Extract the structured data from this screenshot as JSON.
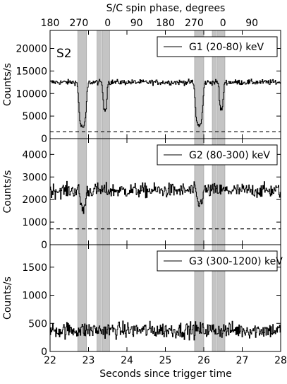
{
  "chart_data": {
    "type": "line",
    "top_axis": {
      "label": "S/C spin phase, degrees",
      "ticks": [
        {
          "x": 22.0,
          "label": "180"
        },
        {
          "x": 22.75,
          "label": "270"
        },
        {
          "x": 23.5,
          "label": "0"
        },
        {
          "x": 24.25,
          "label": "90"
        },
        {
          "x": 25.0,
          "label": "180"
        },
        {
          "x": 25.75,
          "label": "270"
        },
        {
          "x": 26.5,
          "label": "0"
        },
        {
          "x": 27.25,
          "label": "90"
        }
      ]
    },
    "xlabel": "Seconds since trigger time",
    "xlim": [
      22,
      28
    ],
    "xticks": [
      22,
      23,
      24,
      25,
      26,
      27,
      28
    ],
    "xtick_labels": [
      "22",
      "23",
      "24",
      "25",
      "26",
      "27",
      "28"
    ],
    "shaded_intervals": [
      [
        22.72,
        22.95
      ],
      [
        23.22,
        23.33
      ],
      [
        23.36,
        23.55
      ],
      [
        25.76,
        26.0
      ],
      [
        26.22,
        26.33
      ],
      [
        26.36,
        26.55
      ]
    ],
    "panels": [
      {
        "label": "S2",
        "legend": "G1 (20-80) keV",
        "ylabel": "Counts/s",
        "ylim": [
          0,
          24000
        ],
        "yticks": [
          0,
          5000,
          10000,
          15000,
          20000
        ],
        "ytick_labels": [
          "0",
          "5000",
          "10000",
          "15000",
          "20000"
        ],
        "threshold": 1500,
        "baseline": 12500,
        "noise": 700,
        "dips": [
          {
            "center": 22.84,
            "width": 0.11,
            "min": 2600
          },
          {
            "center": 23.42,
            "width": 0.06,
            "min": 6500
          },
          {
            "center": 25.87,
            "width": 0.11,
            "min": 3000
          },
          {
            "center": 26.45,
            "width": 0.06,
            "min": 6500
          }
        ]
      },
      {
        "label": "",
        "legend": "G2 (80-300) keV",
        "ylabel": "Counts/s",
        "ylim": [
          0,
          4700
        ],
        "yticks": [
          0,
          1000,
          2000,
          3000,
          4000
        ],
        "ytick_labels": [
          "0",
          "1000",
          "2000",
          "3000",
          "4000"
        ],
        "threshold": 700,
        "baseline": 2400,
        "noise": 380,
        "dips": [
          {
            "center": 22.85,
            "width": 0.08,
            "min": 1600
          },
          {
            "center": 25.88,
            "width": 0.08,
            "min": 1800
          }
        ]
      },
      {
        "label": "",
        "legend": "G3 (300-1200) keV",
        "ylabel": "Counts/s",
        "ylim": [
          0,
          1900
        ],
        "yticks": [
          0,
          500,
          1000,
          1500
        ],
        "ytick_labels": [
          "0",
          "500",
          "1000",
          "1500"
        ],
        "threshold": null,
        "baseline": 380,
        "noise": 170,
        "dips": []
      }
    ]
  }
}
